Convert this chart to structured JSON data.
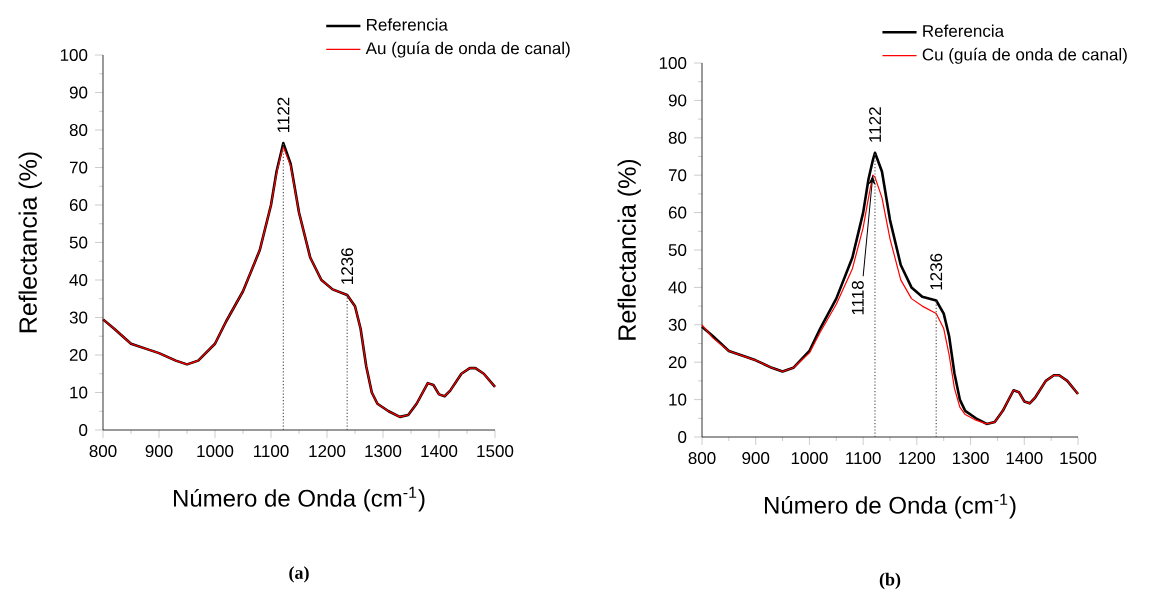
{
  "chart_data": [
    {
      "type": "line",
      "xlabel": "Número de Onda (cm$^{-1}$)",
      "ylabel": "Reflectancia (%)",
      "legend": "top right",
      "marker": "none",
      "x": [
        800,
        820,
        850,
        880,
        900,
        930,
        950,
        970,
        1000,
        1020,
        1050,
        1080,
        1100,
        1110,
        1118,
        1122,
        1135,
        1150,
        1170,
        1190,
        1210,
        1236,
        1250,
        1260,
        1270,
        1280,
        1290,
        1310,
        1330,
        1345,
        1360,
        1380,
        1390,
        1400,
        1410,
        1420,
        1440,
        1455,
        1465,
        1480,
        1500
      ],
      "series": [
        {
          "name": "Referencia",
          "color": "#000000",
          "values": [
            29.5,
            27,
            23,
            21.5,
            20.5,
            18.5,
            17.5,
            18.5,
            23,
            29,
            37,
            48,
            60,
            69,
            74,
            76.5,
            71,
            58,
            46,
            40,
            37.5,
            36,
            33,
            27,
            17,
            10,
            7,
            5,
            3.5,
            4,
            7,
            12.5,
            12,
            9.5,
            9,
            10.5,
            15,
            16.5,
            16.5,
            15,
            11.5
          ]
        },
        {
          "name": "Au (guía de onda de canal)",
          "color": "#ff0000",
          "values": [
            29.5,
            27,
            23,
            21.5,
            20.5,
            18.5,
            17.5,
            18.5,
            23,
            29,
            37,
            48,
            60,
            68.5,
            73.5,
            75.5,
            70.5,
            58,
            46,
            40,
            37.5,
            36,
            33,
            27,
            17,
            10,
            7,
            5,
            3.5,
            4,
            7,
            12.5,
            12,
            9.5,
            9,
            10.5,
            15,
            16.5,
            16.5,
            15,
            11.5
          ]
        }
      ],
      "xlim": [
        800,
        1500
      ],
      "ylim": [
        0,
        100
      ],
      "xticks": [
        800,
        900,
        1000,
        1100,
        1200,
        1300,
        1400,
        1500
      ],
      "yticks": [
        0,
        10,
        20,
        30,
        40,
        50,
        60,
        70,
        80,
        90,
        100
      ],
      "ref_lines": [
        {
          "axis": "x",
          "value": 1122,
          "label": "1122",
          "line_style": "dotted"
        },
        {
          "axis": "x",
          "value": 1236,
          "label": "1236",
          "line_style": "dotted"
        }
      ],
      "annotations": [
        "(a)"
      ]
    },
    {
      "type": "line",
      "xlabel": "Número de Onda (cm$^{-1}$)",
      "ylabel": "Reflectancia (%)",
      "legend": "top right",
      "marker": "none",
      "x": [
        800,
        820,
        850,
        880,
        900,
        930,
        950,
        970,
        1000,
        1020,
        1050,
        1080,
        1100,
        1110,
        1118,
        1122,
        1135,
        1150,
        1170,
        1190,
        1210,
        1236,
        1250,
        1260,
        1270,
        1280,
        1290,
        1310,
        1330,
        1345,
        1360,
        1380,
        1390,
        1400,
        1410,
        1420,
        1440,
        1455,
        1465,
        1480,
        1500
      ],
      "series": [
        {
          "name": "Referencia",
          "color": "#000000",
          "values": [
            29.5,
            27,
            23,
            21.5,
            20.5,
            18.5,
            17.5,
            18.5,
            23,
            29,
            37,
            48,
            60,
            69,
            74,
            76,
            71,
            58,
            46,
            40,
            37.5,
            36.5,
            33,
            27,
            17,
            10,
            7,
            5,
            3.5,
            4,
            7,
            12.5,
            12,
            9.5,
            9,
            10.5,
            15,
            16.5,
            16.5,
            15,
            11.5
          ]
        },
        {
          "name": "Cu (guía de onda de canal)",
          "color": "#ff0000",
          "values": [
            30,
            26.5,
            23,
            21.5,
            20.5,
            18.5,
            17.5,
            18.5,
            22.5,
            28,
            35.5,
            45,
            56,
            64,
            70,
            69.5,
            64,
            53,
            42,
            37,
            35,
            33,
            29,
            22,
            13,
            8,
            6,
            4.5,
            3.5,
            4,
            7,
            12.5,
            12,
            9.5,
            9,
            10.5,
            15,
            16.5,
            16.5,
            15,
            11.5
          ]
        }
      ],
      "xlim": [
        800,
        1500
      ],
      "ylim": [
        0,
        100
      ],
      "xticks": [
        800,
        900,
        1000,
        1100,
        1200,
        1300,
        1400,
        1500
      ],
      "yticks": [
        0,
        10,
        20,
        30,
        40,
        50,
        60,
        70,
        80,
        90,
        100
      ],
      "ref_lines": [
        {
          "axis": "x",
          "value": 1122,
          "label": "1122",
          "line_style": "dotted"
        },
        {
          "axis": "x",
          "value": 1236,
          "label": "1236",
          "line_style": "dotted"
        }
      ],
      "annotations": [
        {
          "text": "1118",
          "x": 1118,
          "y": 70
        },
        "(b)"
      ]
    }
  ]
}
